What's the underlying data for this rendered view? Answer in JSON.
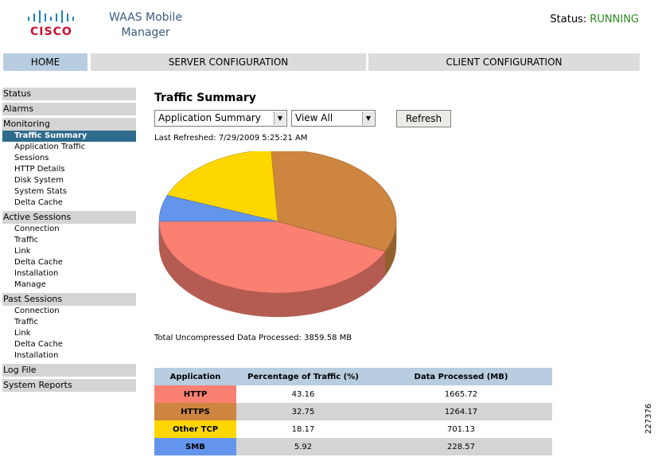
{
  "header": {
    "brand": "CISCO",
    "app_title_line1": "WAAS Mobile",
    "app_title_line2": "Manager",
    "status_label": "Status:",
    "status_value": "RUNNING",
    "status_color": "#2b8a1f"
  },
  "nav": {
    "tabs": [
      {
        "label": "HOME",
        "active": true
      },
      {
        "label": "SERVER CONFIGURATION",
        "active": false
      },
      {
        "label": "CLIENT CONFIGURATION",
        "active": false
      }
    ]
  },
  "sidebar": {
    "status": "Status",
    "alarms": "Alarms",
    "monitoring": "Monitoring",
    "monitoring_items": [
      "Traffic Summary",
      "Application Traffic",
      "Sessions",
      "HTTP Details",
      "Disk System",
      "System Stats",
      "Delta Cache"
    ],
    "active_sessions": "Active Sessions",
    "active_items": [
      "Connection",
      "Traffic",
      "Link",
      "Delta Cache",
      "Installation",
      "Manage"
    ],
    "past_sessions": "Past Sessions",
    "past_items": [
      "Connection",
      "Traffic",
      "Link",
      "Delta Cache",
      "Installation"
    ],
    "log_file": "Log File",
    "system_reports": "System Reports"
  },
  "main": {
    "title": "Traffic Summary",
    "summary_select": "Application Summary",
    "view_select": "View All",
    "refresh_label": "Refresh",
    "last_refreshed": "Last Refreshed: 7/29/2009 5:25:21 AM",
    "total_processed": "Total Uncompressed Data Processed: 3859.58 MB"
  },
  "table": {
    "headers": [
      "Application",
      "Percentage of Traffic (%)",
      "Data Processed (MB)"
    ],
    "rows": [
      {
        "app": "HTTP",
        "pct": "43.16",
        "mb": "1665.72",
        "color": "#fa8072"
      },
      {
        "app": "HTTPS",
        "pct": "32.75",
        "mb": "1264.17",
        "color": "#cd853f"
      },
      {
        "app": "Other TCP",
        "pct": "18.17",
        "mb": "701.13",
        "color": "#ffd700"
      },
      {
        "app": "SMB",
        "pct": "5.92",
        "mb": "228.57",
        "color": "#6495ed"
      }
    ]
  },
  "chart_data": {
    "type": "pie",
    "labels": [
      "HTTP",
      "HTTPS",
      "Other TCP",
      "SMB"
    ],
    "values": [
      43.16,
      32.75,
      18.17,
      5.92
    ],
    "colors": [
      "#fa8072",
      "#cd853f",
      "#ffd700",
      "#6495ed"
    ]
  },
  "figure_id": "227376"
}
